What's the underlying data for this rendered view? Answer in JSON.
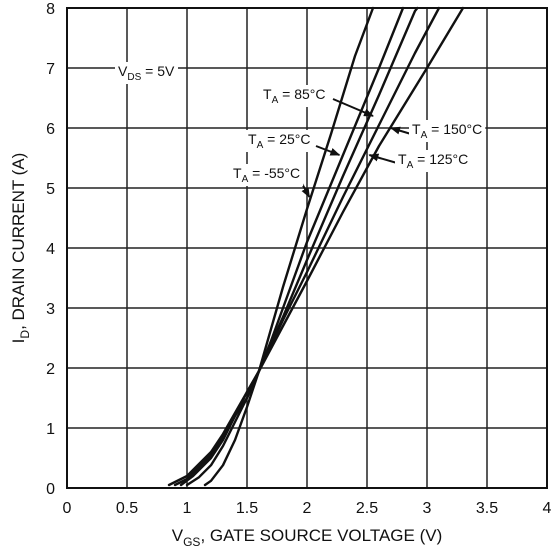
{
  "chart_data": {
    "type": "line",
    "xlabel": {
      "base": "V",
      "sub": "GS",
      "rest": ", GATE SOURCE VOLTAGE (V)"
    },
    "ylabel": {
      "base": "I",
      "sub": "D",
      "rest": ", DRAIN CURRENT (A)"
    },
    "xlim": [
      0,
      4
    ],
    "ylim": [
      0,
      8
    ],
    "xticks": [
      "0",
      "0.5",
      "1",
      "1.5",
      "2",
      "2.5",
      "3",
      "3.5",
      "4"
    ],
    "yticks": [
      "0",
      "1",
      "2",
      "3",
      "4",
      "5",
      "6",
      "7",
      "8"
    ],
    "grid": true,
    "colors": {
      "line": "#111111",
      "grid": "#222222",
      "background": "#ffffff"
    },
    "series": [
      {
        "name": "T_A = -55°C",
        "label": {
          "base": "T",
          "sub": "A",
          "rest": " = -55°C"
        },
        "points": [
          [
            1.15,
            0.05
          ],
          [
            1.2,
            0.12
          ],
          [
            1.3,
            0.38
          ],
          [
            1.4,
            0.8
          ],
          [
            1.5,
            1.35
          ],
          [
            1.6,
            1.95
          ],
          [
            1.7,
            2.65
          ],
          [
            1.8,
            3.35
          ],
          [
            1.9,
            4.0
          ],
          [
            2.0,
            4.65
          ],
          [
            2.2,
            5.9
          ],
          [
            2.4,
            7.2
          ],
          [
            2.55,
            8.0
          ]
        ]
      },
      {
        "name": "T_A = 25°C",
        "label": {
          "base": "T",
          "sub": "A",
          "rest": " = 25°C"
        },
        "points": [
          [
            1.0,
            0.05
          ],
          [
            1.1,
            0.18
          ],
          [
            1.2,
            0.38
          ],
          [
            1.3,
            0.7
          ],
          [
            1.4,
            1.1
          ],
          [
            1.5,
            1.5
          ],
          [
            1.6,
            1.95
          ],
          [
            1.7,
            2.45
          ],
          [
            1.8,
            3.0
          ],
          [
            1.9,
            3.55
          ],
          [
            2.0,
            4.1
          ],
          [
            2.3,
            5.55
          ],
          [
            2.6,
            7.0
          ],
          [
            2.8,
            8.0
          ]
        ]
      },
      {
        "name": "T_A = 85°C",
        "label": {
          "base": "T",
          "sub": "A",
          "rest": " = 85°C"
        },
        "points": [
          [
            0.95,
            0.05
          ],
          [
            1.05,
            0.2
          ],
          [
            1.2,
            0.5
          ],
          [
            1.3,
            0.8
          ],
          [
            1.4,
            1.2
          ],
          [
            1.5,
            1.5
          ],
          [
            1.6,
            1.95
          ],
          [
            1.8,
            2.85
          ],
          [
            2.0,
            3.8
          ],
          [
            2.3,
            5.2
          ],
          [
            2.6,
            6.55
          ],
          [
            2.9,
            7.95
          ],
          [
            2.92,
            8.0
          ]
        ]
      },
      {
        "name": "T_A = 125°C",
        "label": {
          "base": "T",
          "sub": "A",
          "rest": " = 125°C"
        },
        "points": [
          [
            0.9,
            0.05
          ],
          [
            1.0,
            0.15
          ],
          [
            1.2,
            0.55
          ],
          [
            1.3,
            0.85
          ],
          [
            1.4,
            1.2
          ],
          [
            1.5,
            1.6
          ],
          [
            1.6,
            1.95
          ],
          [
            1.8,
            2.8
          ],
          [
            2.0,
            3.6
          ],
          [
            2.3,
            4.85
          ],
          [
            2.6,
            6.05
          ],
          [
            2.9,
            7.25
          ],
          [
            3.1,
            8.0
          ]
        ]
      },
      {
        "name": "T_A = 150°C",
        "label": {
          "base": "T",
          "sub": "A",
          "rest": " = 150°C"
        },
        "points": [
          [
            0.85,
            0.05
          ],
          [
            1.0,
            0.2
          ],
          [
            1.2,
            0.6
          ],
          [
            1.3,
            0.9
          ],
          [
            1.4,
            1.25
          ],
          [
            1.5,
            1.6
          ],
          [
            1.6,
            1.95
          ],
          [
            1.8,
            2.7
          ],
          [
            2.0,
            3.45
          ],
          [
            2.3,
            4.6
          ],
          [
            2.6,
            5.7
          ],
          [
            3.0,
            7.0
          ],
          [
            3.3,
            8.0
          ]
        ]
      }
    ],
    "annotations": [
      {
        "text": {
          "base": "V",
          "sub": "DS",
          "rest": " = 5V"
        }
      },
      {
        "text": {
          "base": "T",
          "sub": "A",
          "rest": " = 85°C"
        },
        "target": [
          2.55,
          6.2
        ]
      },
      {
        "text": {
          "base": "T",
          "sub": "A",
          "rest": " = 25°C"
        },
        "target": [
          2.27,
          5.55
        ]
      },
      {
        "text": {
          "base": "T",
          "sub": "A",
          "rest": " = -55°C"
        },
        "target": [
          2.02,
          4.85
        ]
      },
      {
        "text": {
          "base": "T",
          "sub": "A",
          "rest": " = 150°C"
        },
        "target": [
          2.7,
          6.0
        ]
      },
      {
        "text": {
          "base": "T",
          "sub": "A",
          "rest": " = 125°C"
        },
        "target": [
          2.52,
          5.55
        ]
      }
    ]
  }
}
